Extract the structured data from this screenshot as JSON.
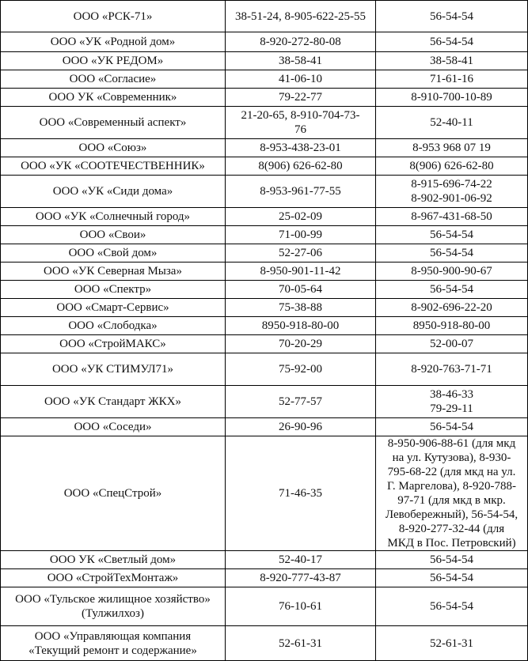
{
  "rows": [
    {
      "name": "ООО «РСК-71»",
      "phone": "38-51-24, 8-905-622-25-55",
      "dispatch": "56-54-54"
    },
    {
      "name": "ООО «УК «Родной дом»",
      "phone": "8-920-272-80-08",
      "dispatch": "56-54-54"
    },
    {
      "name": "ООО «УК РЕДОМ»",
      "phone": "38-58-41",
      "dispatch": "38-58-41"
    },
    {
      "name": "ООО «Согласие»",
      "phone": "41-06-10",
      "dispatch": "71-61-16"
    },
    {
      "name": "ООО УК «Современник»",
      "phone": "79-22-77",
      "dispatch": "8-910-700-10-89"
    },
    {
      "name": "ООО «Современный аспект»",
      "phone": "21-20-65, 8-910-704-73-\n76",
      "dispatch": "52-40-11"
    },
    {
      "name": "ООО «Союз»",
      "phone": "8-953-438-23-01",
      "dispatch": "8-953 968 07 19"
    },
    {
      "name": "ООО «УК «СООТЕЧЕСТВЕННИК»",
      "phone": "8(906) 626-62-80",
      "dispatch": "8(906) 626-62-80"
    },
    {
      "name": "ООО «УК «Сиди дома»",
      "phone": "8-953-961-77-55",
      "dispatch": "8-915-696-74-22\n8-902-901-06-92"
    },
    {
      "name": "ООО «УК «Солнечный город»",
      "phone": "25-02-09",
      "dispatch": "8-967-431-68-50"
    },
    {
      "name": "ООО «Свои»",
      "phone": "71-00-99",
      "dispatch": "56-54-54"
    },
    {
      "name": "ООО «Свой дом»",
      "phone": "52-27-06",
      "dispatch": "56-54-54"
    },
    {
      "name": "ООО «УК Северная Мыза»",
      "phone": "8-950-901-11-42",
      "dispatch": "8-950-900-90-67"
    },
    {
      "name": "ООО «Спектр»",
      "phone": "70-05-64",
      "dispatch": "56-54-54"
    },
    {
      "name": "ООО «Смарт-Сервис»",
      "phone": "75-38-88",
      "dispatch": "8-902-696-22-20"
    },
    {
      "name": "ООО «Слободка»",
      "phone": "8950-918-80-00",
      "dispatch": "8950-918-80-00"
    },
    {
      "name": "ООО «СтройМАКС»",
      "phone": "70-20-29",
      "dispatch": "52-00-07"
    },
    {
      "name": "ООО «УК СТИМУЛ71»",
      "phone": "75-92-00",
      "dispatch": "8-920-763-71-71"
    },
    {
      "name": "ООО «УК Стандарт ЖКХ»",
      "phone": "52-77-57",
      "dispatch": "38-46-33\n79-29-11"
    },
    {
      "name": "ООО «Соседи»",
      "phone": "26-90-96",
      "dispatch": "56-54-54"
    },
    {
      "name": "ООО «СпецСтрой»",
      "phone": "71-46-35",
      "dispatch": "8-950-906-88-61 (для мкд\nна ул. Кутузова), 8-930-\n795-68-22 (для мкд на ул.\nГ. Маргелова), 8-920-788-\n97-71 (для мкд в мкр.\nЛевобережный), 56-54-54,\n8-920-277-32-44 (для\nМКД в Пос. Петровский)"
    },
    {
      "name": "ООО УК «Светлый дом»",
      "phone": "52-40-17",
      "dispatch": "56-54-54"
    },
    {
      "name": "ООО «СтройТехМонтаж»",
      "phone": "8-920-777-43-87",
      "dispatch": "56-54-54"
    },
    {
      "name": "ООО «Тульское жилищное хозяйство»\n(Тулжилхоз)",
      "phone": "76-10-61",
      "dispatch": "56-54-54"
    },
    {
      "name": "ООО «Управляющая компания\n«Текущий ремонт и содержание»",
      "phone": "52-61-31",
      "dispatch": "52-61-31"
    }
  ]
}
